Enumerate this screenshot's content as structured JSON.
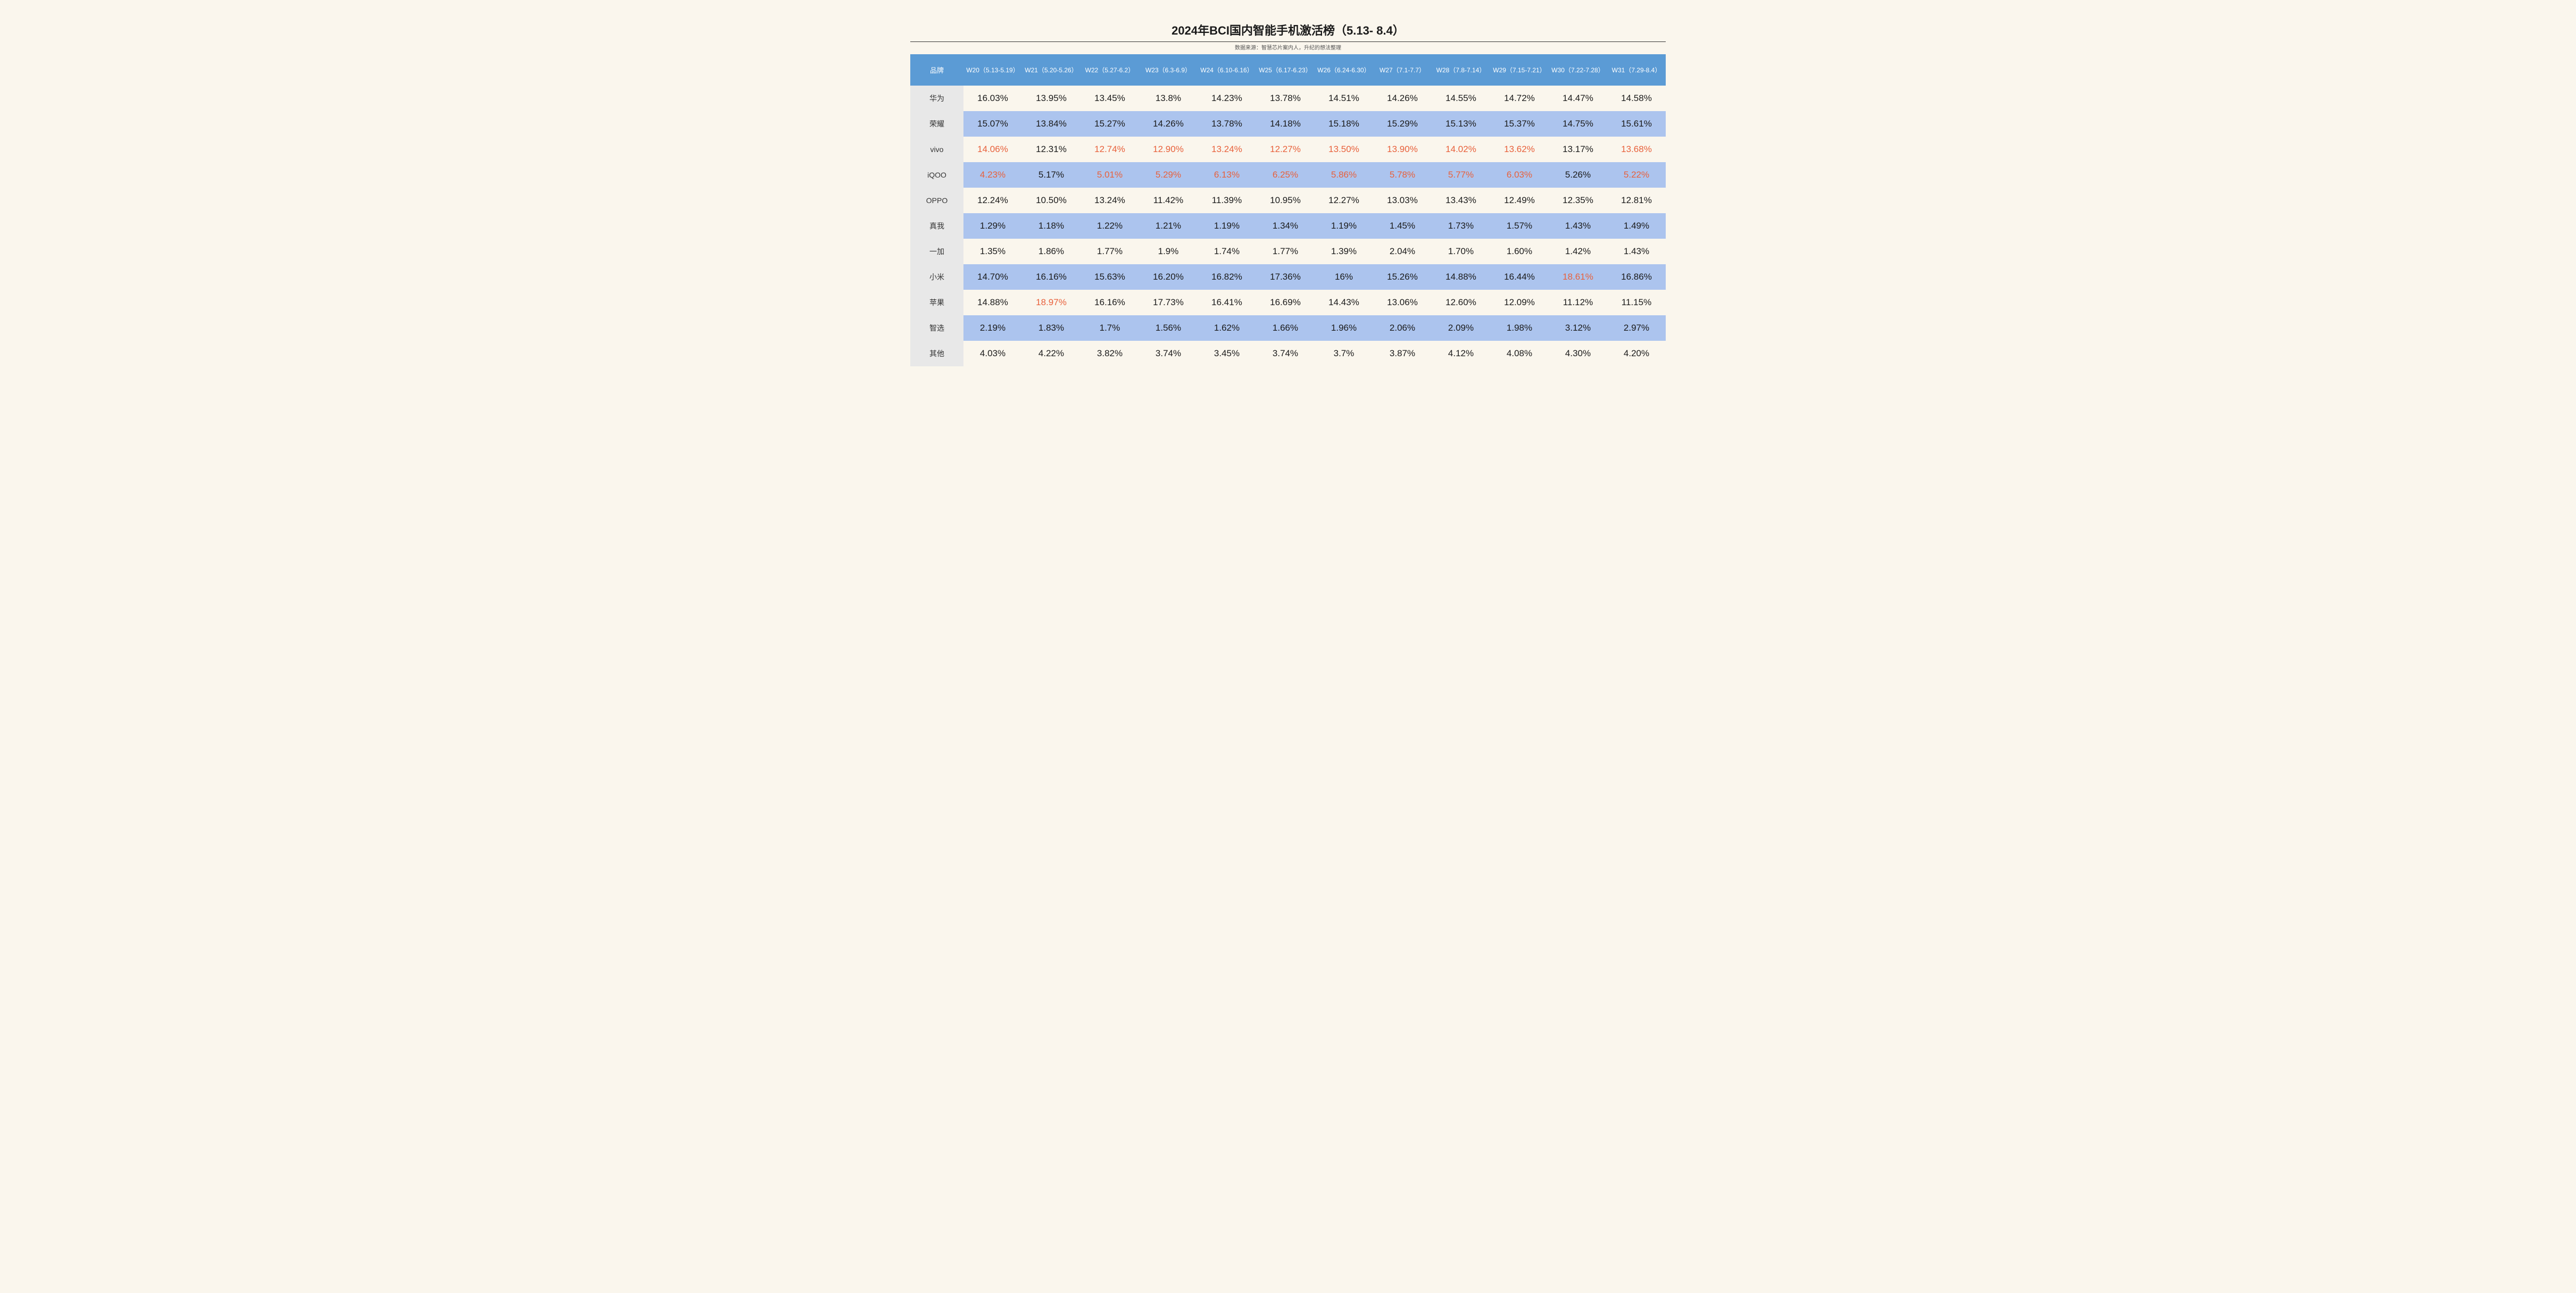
{
  "title": "2024年BCI国内智能手机激活榜（5.13- 8.4）",
  "subtitle": "数据来源：智慧芯片案内人，升纪的想法整理",
  "colors": {
    "page_bg": "#faf6ed",
    "header_bg": "#5b9bd5",
    "header_text": "#ffffff",
    "brand_col_bg": "#e8e8e8",
    "row_even_bg": "#acc4ee",
    "row_odd_bg": "#faf6ed",
    "text": "#1a1a1a",
    "highlight_text": "#e8613c"
  },
  "typography": {
    "title_fontsize": 22,
    "subtitle_fontsize": 10,
    "header_fontsize": 12,
    "brand_fontsize": 14,
    "cell_fontsize": 17
  },
  "table": {
    "brand_header": "品牌",
    "columns": [
      "W20（5.13-5.19）",
      "W21（5.20-5.26）",
      "W22（5.27-6.2）",
      "W23（6.3-6.9）",
      "W24（6.10-6.16）",
      "W25（6.17-6.23）",
      "W26（6.24-6.30）",
      "W27（7.1-7.7）",
      "W28（7.8-7.14）",
      "W29（7.15-7.21）",
      "W30（7.22-7.28）",
      "W31（7.29-8.4）"
    ],
    "rows": [
      {
        "brand": "华为",
        "values": [
          "16.03%",
          "13.95%",
          "13.45%",
          "13.8%",
          "14.23%",
          "13.78%",
          "14.51%",
          "14.26%",
          "14.55%",
          "14.72%",
          "14.47%",
          "14.58%"
        ],
        "hl": []
      },
      {
        "brand": "荣耀",
        "values": [
          "15.07%",
          "13.84%",
          "15.27%",
          "14.26%",
          "13.78%",
          "14.18%",
          "15.18%",
          "15.29%",
          "15.13%",
          "15.37%",
          "14.75%",
          "15.61%"
        ],
        "hl": []
      },
      {
        "brand": "vivo",
        "values": [
          "14.06%",
          "12.31%",
          "12.74%",
          "12.90%",
          "13.24%",
          "12.27%",
          "13.50%",
          "13.90%",
          "14.02%",
          "13.62%",
          "13.17%",
          "13.68%"
        ],
        "hl": [
          0,
          2,
          3,
          4,
          5,
          6,
          7,
          8,
          9,
          11
        ]
      },
      {
        "brand": "iQOO",
        "values": [
          "4.23%",
          "5.17%",
          "5.01%",
          "5.29%",
          "6.13%",
          "6.25%",
          "5.86%",
          "5.78%",
          "5.77%",
          "6.03%",
          "5.26%",
          "5.22%"
        ],
        "hl": [
          0,
          2,
          3,
          4,
          5,
          6,
          7,
          8,
          9,
          11
        ]
      },
      {
        "brand": "OPPO",
        "values": [
          "12.24%",
          "10.50%",
          "13.24%",
          "11.42%",
          "11.39%",
          "10.95%",
          "12.27%",
          "13.03%",
          "13.43%",
          "12.49%",
          "12.35%",
          "12.81%"
        ],
        "hl": []
      },
      {
        "brand": "真我",
        "values": [
          "1.29%",
          "1.18%",
          "1.22%",
          "1.21%",
          "1.19%",
          "1.34%",
          "1.19%",
          "1.45%",
          "1.73%",
          "1.57%",
          "1.43%",
          "1.49%"
        ],
        "hl": []
      },
      {
        "brand": "一加",
        "values": [
          "1.35%",
          "1.86%",
          "1.77%",
          "1.9%",
          "1.74%",
          "1.77%",
          "1.39%",
          "2.04%",
          "1.70%",
          "1.60%",
          "1.42%",
          "1.43%"
        ],
        "hl": []
      },
      {
        "brand": "小米",
        "values": [
          "14.70%",
          "16.16%",
          "15.63%",
          "16.20%",
          "16.82%",
          "17.36%",
          "16%",
          "15.26%",
          "14.88%",
          "16.44%",
          "18.61%",
          "16.86%"
        ],
        "hl": [
          10
        ]
      },
      {
        "brand": "苹果",
        "values": [
          "14.88%",
          "18.97%",
          "16.16%",
          "17.73%",
          "16.41%",
          "16.69%",
          "14.43%",
          "13.06%",
          "12.60%",
          "12.09%",
          "11.12%",
          "11.15%"
        ],
        "hl": [
          1
        ]
      },
      {
        "brand": "智选",
        "values": [
          "2.19%",
          "1.83%",
          "1.7%",
          "1.56%",
          "1.62%",
          "1.66%",
          "1.96%",
          "2.06%",
          "2.09%",
          "1.98%",
          "3.12%",
          "2.97%"
        ],
        "hl": []
      },
      {
        "brand": "其他",
        "values": [
          "4.03%",
          "4.22%",
          "3.82%",
          "3.74%",
          "3.45%",
          "3.74%",
          "3.7%",
          "3.87%",
          "4.12%",
          "4.08%",
          "4.30%",
          "4.20%"
        ],
        "hl": []
      }
    ]
  }
}
